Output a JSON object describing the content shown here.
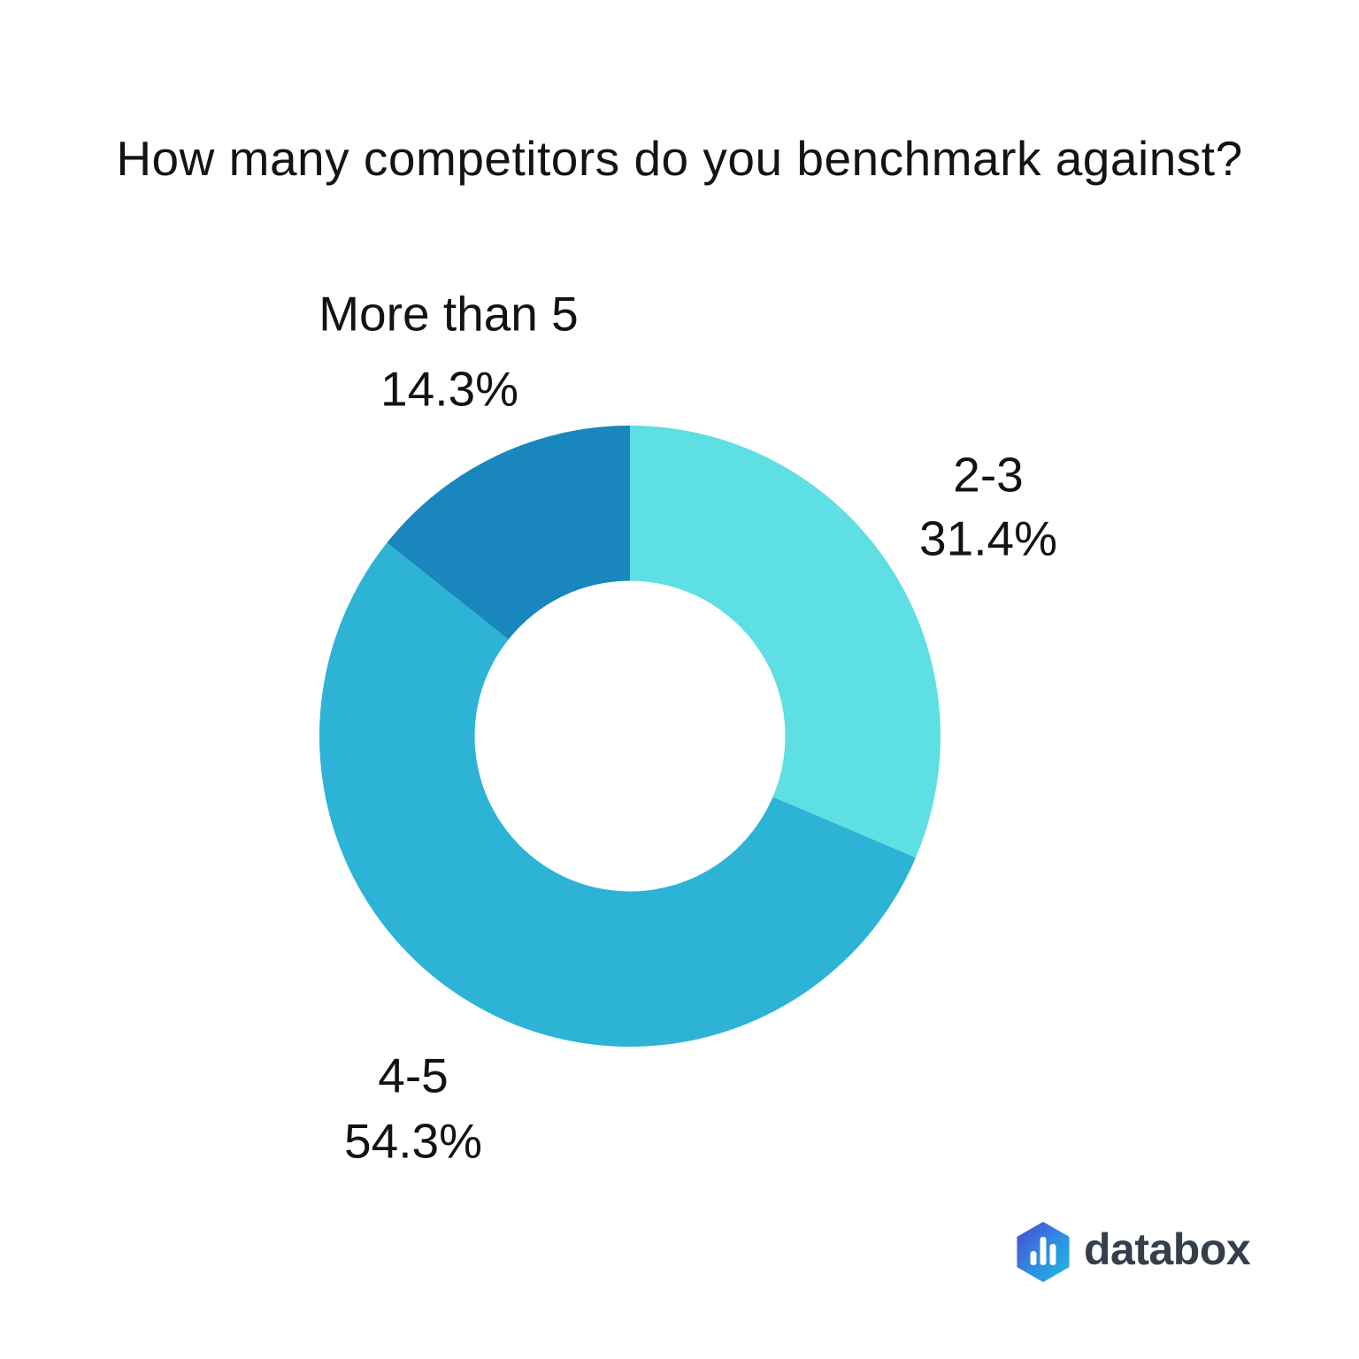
{
  "title": "How many competitors do you benchmark against?",
  "chart_data": {
    "type": "pie",
    "variant": "donut",
    "title": "How many competitors do you benchmark against?",
    "categories": [
      "2-3",
      "4-5",
      "More than 5"
    ],
    "values": [
      31.4,
      54.3,
      14.3
    ],
    "unit": "%",
    "display_values": [
      "31.4%",
      "54.3%",
      "14.3%"
    ],
    "colors": [
      "#5EDFE3",
      "#2CB3D6",
      "#1987BD"
    ],
    "start_angle_deg": 0,
    "direction": "clockwise",
    "inner_radius_ratio": 0.5,
    "legend_position": "none",
    "label_placement": "outside-callouts",
    "background": "#ffffff",
    "text_color": "#131313"
  },
  "logo": {
    "text": "databox",
    "text_color": "#353E4B",
    "icon": "databox-hexagon-bars-icon",
    "icon_gradient": [
      "#4F49D4",
      "#2B90E0",
      "#25B6E0"
    ],
    "icon_bar_color": "#ffffff"
  }
}
